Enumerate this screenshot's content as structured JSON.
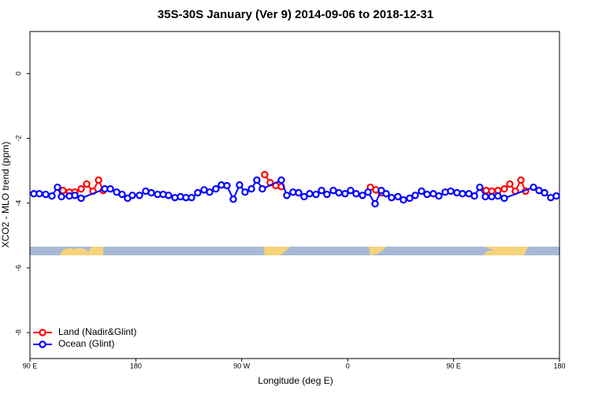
{
  "chart_data": {
    "type": "line",
    "title": "35S-30S January (Ver 9)   2014-09-06 to 2018-12-31",
    "x_label": "Longitude (deg E)",
    "y_label": "XCO2 - MLO trend (ppm)",
    "xlim": [
      90,
      540
    ],
    "ylim": [
      -8.8,
      1.3
    ],
    "xticks": [
      {
        "value": 90,
        "label": "90 E"
      },
      {
        "value": 180,
        "label": "180"
      },
      {
        "value": 270,
        "label": "90 W"
      },
      {
        "value": 360,
        "label": "0"
      },
      {
        "value": 450,
        "label": "90 E"
      },
      {
        "value": 540,
        "label": "180"
      }
    ],
    "yticks": [
      0,
      -2,
      -4,
      -6,
      -8
    ],
    "legend": "bottom-left",
    "series": [
      {
        "name": "Land (Nadir&Glint)",
        "color": "#ff0000",
        "x": [
          118.1,
          123.5,
          128.2,
          133.5,
          138.2,
          143.6,
          148.3,
          152.3,
          null,
          289.5,
          294.2,
          298.9,
          303.6,
          null,
          379.3,
          384.0,
          388.6,
          null,
          477.7,
          482.4,
          487.7,
          493.1,
          497.8,
          502.5,
          507.2,
          511.2
        ],
        "values": [
          -3.61,
          -3.66,
          -3.66,
          -3.56,
          -3.41,
          -3.63,
          -3.29,
          -3.61,
          null,
          -3.12,
          -3.37,
          -3.46,
          -3.49,
          null,
          -3.51,
          -3.59,
          -3.68,
          null,
          -3.61,
          -3.63,
          -3.61,
          -3.56,
          -3.41,
          -3.63,
          -3.29,
          -3.63
        ]
      },
      {
        "name": "Ocean (Glint)",
        "color": "#0000ff",
        "x": [
          93.3,
          98.0,
          103.4,
          108.7,
          113.4,
          116.8,
          123.5,
          128.2,
          133.5,
          153.6,
          158.3,
          163.7,
          168.3,
          173.0,
          177.0,
          183.1,
          188.4,
          193.1,
          198.5,
          203.2,
          207.8,
          213.2,
          217.9,
          222.6,
          227.3,
          232.6,
          238.0,
          242.7,
          248.0,
          252.7,
          257.4,
          262.8,
          268.1,
          272.8,
          278.2,
          282.8,
          287.5,
          303.6,
          308.3,
          313.6,
          318.3,
          323.0,
          327.7,
          333.1,
          337.8,
          342.4,
          347.8,
          352.5,
          357.8,
          362.5,
          367.2,
          372.6,
          377.3,
          383.3,
          388.6,
          392.7,
          397.3,
          402.7,
          407.4,
          412.7,
          417.4,
          422.8,
          427.5,
          432.8,
          437.5,
          442.9,
          447.6,
          452.9,
          457.6,
          463.0,
          467.7,
          472.3,
          477.0,
          482.4,
          487.7,
          493.1,
          517.9,
          522.6,
          527.3,
          532.6,
          537.3
        ],
        "values": [
          -3.71,
          -3.71,
          -3.73,
          -3.78,
          -3.51,
          -3.8,
          -3.78,
          -3.76,
          -3.85,
          -3.56,
          -3.56,
          -3.66,
          -3.73,
          -3.85,
          -3.76,
          -3.76,
          -3.63,
          -3.68,
          -3.73,
          -3.73,
          -3.76,
          -3.83,
          -3.8,
          -3.83,
          -3.83,
          -3.68,
          -3.59,
          -3.66,
          -3.56,
          -3.44,
          -3.46,
          -3.88,
          -3.44,
          -3.66,
          -3.56,
          -3.29,
          -3.56,
          -3.29,
          -3.76,
          -3.66,
          -3.68,
          -3.8,
          -3.71,
          -3.73,
          -3.61,
          -3.73,
          -3.61,
          -3.68,
          -3.71,
          -3.61,
          -3.71,
          -3.76,
          -3.66,
          -4.02,
          -3.61,
          -3.71,
          -3.83,
          -3.8,
          -3.9,
          -3.85,
          -3.76,
          -3.63,
          -3.73,
          -3.71,
          -3.78,
          -3.66,
          -3.63,
          -3.68,
          -3.71,
          -3.71,
          -3.78,
          -3.51,
          -3.8,
          -3.8,
          -3.78,
          -3.85,
          -3.51,
          -3.61,
          -3.68,
          -3.83,
          -3.78
        ]
      }
    ]
  }
}
